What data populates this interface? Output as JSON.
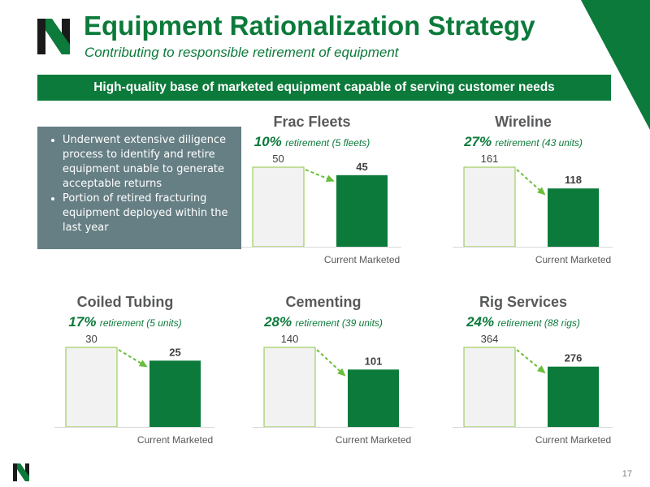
{
  "header": {
    "title": "Equipment Rationalization Strategy",
    "subtitle": "Contributing to responsible retirement of equipment",
    "banner": "High-quality base of marketed equipment capable of serving customer needs"
  },
  "notes": [
    "Underwent extensive diligence process to identify and retire equipment unable to generate acceptable returns",
    "Portion of retired fracturing equipment deployed within the last year"
  ],
  "colors": {
    "brand_green": "#0b7a3a",
    "bar_light": "#f2f2f2",
    "bar_outline": "#8cc63f",
    "notes_bg": "#667f84"
  },
  "page_number": "17",
  "chart_data": [
    {
      "type": "bar",
      "title": "Frac Fleets",
      "subtitle_pct": "10%",
      "subtitle_text": "retirement (5 fleets)",
      "categories": [
        "",
        "Current Marketed"
      ],
      "values": [
        50,
        45
      ]
    },
    {
      "type": "bar",
      "title": "Wireline",
      "subtitle_pct": "27%",
      "subtitle_text": "retirement (43 units)",
      "categories": [
        "",
        "Current Marketed"
      ],
      "values": [
        161,
        118
      ]
    },
    {
      "type": "bar",
      "title": "Coiled Tubing",
      "subtitle_pct": "17%",
      "subtitle_text": "retirement (5 units)",
      "categories": [
        "",
        "Current Marketed"
      ],
      "values": [
        30,
        25
      ]
    },
    {
      "type": "bar",
      "title": "Cementing",
      "subtitle_pct": "28%",
      "subtitle_text": "retirement (39 units)",
      "categories": [
        "",
        "Current Marketed"
      ],
      "values": [
        140,
        101
      ]
    },
    {
      "type": "bar",
      "title": "Rig Services",
      "subtitle_pct": "24%",
      "subtitle_text": "retirement (88 rigs)",
      "categories": [
        "",
        "Current Marketed"
      ],
      "values": [
        364,
        276
      ]
    }
  ]
}
